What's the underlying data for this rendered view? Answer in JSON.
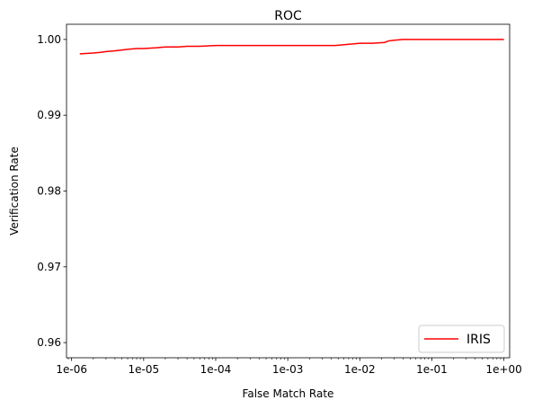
{
  "chart_data": {
    "type": "line",
    "title": "ROC",
    "xlabel": "False Match Rate",
    "ylabel": "Verification Rate",
    "x_scale": "log",
    "xlim": [
      8.5e-07,
      1.2
    ],
    "ylim": [
      0.958,
      1.002
    ],
    "x_ticks": [
      {
        "value": 1e-06,
        "label": "1e-06"
      },
      {
        "value": 1e-05,
        "label": "1e-05"
      },
      {
        "value": 0.0001,
        "label": "1e-04"
      },
      {
        "value": 0.001,
        "label": "1e-03"
      },
      {
        "value": 0.01,
        "label": "1e-02"
      },
      {
        "value": 0.1,
        "label": "1e-01"
      },
      {
        "value": 1,
        "label": "1e+00"
      }
    ],
    "y_ticks": [
      {
        "value": 0.96,
        "label": "0.96"
      },
      {
        "value": 0.97,
        "label": "0.97"
      },
      {
        "value": 0.98,
        "label": "0.98"
      },
      {
        "value": 0.99,
        "label": "0.99"
      },
      {
        "value": 1.0,
        "label": "1.00"
      }
    ],
    "grid": false,
    "legend_position": "bottom-right",
    "series": [
      {
        "name": "IRIS",
        "color": "#ff0000",
        "x": [
          1.3e-06,
          2e-06,
          2.5e-06,
          3e-06,
          4e-06,
          5e-06,
          6e-06,
          8e-06,
          1e-05,
          1.5e-05,
          2e-05,
          3e-05,
          4e-05,
          6e-05,
          0.0001,
          0.0002,
          0.0005,
          0.001,
          0.002,
          0.0045,
          0.006,
          0.008,
          0.01,
          0.015,
          0.022,
          0.025,
          0.03,
          0.04,
          0.06,
          0.1,
          0.2,
          0.5,
          1.0
        ],
        "y": [
          0.9981,
          0.9982,
          0.9983,
          0.9984,
          0.9985,
          0.9986,
          0.9987,
          0.9988,
          0.9988,
          0.9989,
          0.999,
          0.999,
          0.9991,
          0.9991,
          0.9992,
          0.9992,
          0.9992,
          0.9992,
          0.9992,
          0.9992,
          0.9993,
          0.9994,
          0.9995,
          0.9995,
          0.9996,
          0.9998,
          0.9999,
          1.0,
          1.0,
          1.0,
          1.0,
          1.0,
          1.0
        ]
      }
    ]
  }
}
